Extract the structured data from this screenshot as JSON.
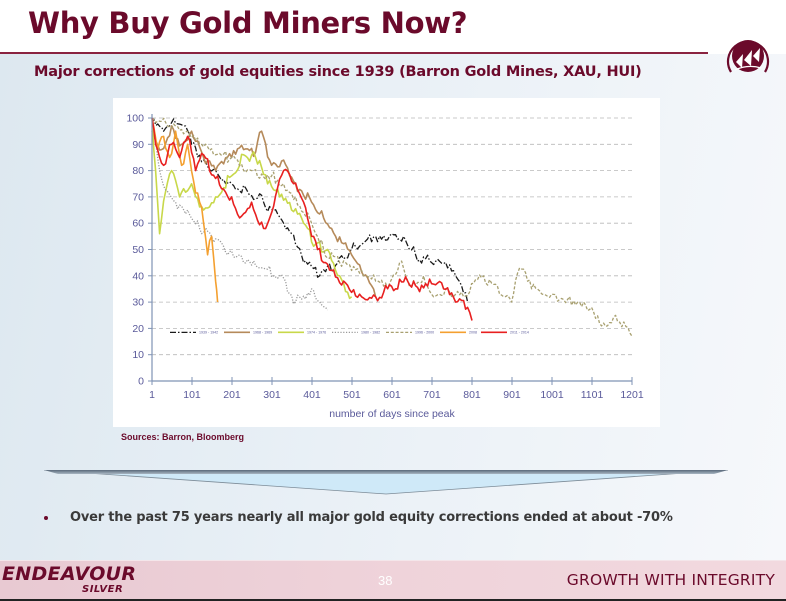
{
  "header": {
    "title": "Why Buy Gold Miners Now?",
    "subtitle": "Major corrections of gold equities since 1939 (Barron Gold Mines, XAU, HUI)"
  },
  "logo": {
    "icon": "endeavour-ship-emblem-icon",
    "color": "#6b0a2b"
  },
  "sources": "Sources: Barron, Bloomberg",
  "bullet": "Over the past 75 years nearly all major gold equity corrections ended at about -70%",
  "footer": {
    "brand_main": "ENDEAVOUR",
    "brand_sub": "SILVER",
    "page_number": "38",
    "tagline": "GROWTH WITH INTEGRITY"
  },
  "colors": {
    "brand": "#6b0a2b",
    "arrow_fill": "#cfe9f8",
    "arrow_edge": "#6d7f8d"
  },
  "chart_data": {
    "type": "line",
    "title": "",
    "xlabel": "number of days since peak",
    "ylabel": "",
    "xlim": [
      1,
      1201
    ],
    "ylim": [
      0,
      100
    ],
    "x_ticks": [
      1,
      101,
      201,
      301,
      401,
      501,
      601,
      701,
      801,
      901,
      1001,
      1101,
      1201
    ],
    "y_ticks": [
      0,
      10,
      20,
      30,
      40,
      50,
      60,
      70,
      80,
      90,
      100
    ],
    "grid": "horizontal-dashed",
    "legend_position": "inside-bottom-left",
    "series": [
      {
        "name": "1939 - 1942",
        "color": "#1a1a1a",
        "style": "dashdot",
        "x": [
          1,
          30,
          60,
          80,
          100,
          130,
          160,
          200,
          240,
          280,
          330,
          360,
          380,
          420,
          460,
          500,
          540,
          560,
          600,
          630,
          660,
          700,
          740,
          760,
          790
        ],
        "y": [
          98,
          95,
          98,
          97,
          90,
          84,
          80,
          75,
          72,
          68,
          60,
          52,
          45,
          40,
          44,
          50,
          54,
          55,
          56,
          55,
          48,
          45,
          43,
          40,
          30
        ]
      },
      {
        "name": "1968 - 1969",
        "color": "#b58a5a",
        "style": "solid",
        "x": [
          1,
          25,
          50,
          75,
          100,
          130,
          160,
          200,
          230,
          260,
          275,
          300,
          330,
          360,
          400,
          430,
          460,
          500,
          530,
          560
        ],
        "y": [
          95,
          88,
          97,
          90,
          95,
          85,
          80,
          85,
          88,
          87,
          95,
          82,
          84,
          75,
          68,
          62,
          55,
          48,
          40,
          32
        ]
      },
      {
        "name": "1974 - 1976",
        "color": "#c8d84a",
        "style": "solid",
        "x": [
          1,
          10,
          20,
          35,
          50,
          70,
          100,
          130,
          160,
          200,
          230,
          260,
          290,
          320,
          350,
          380,
          410,
          440,
          470,
          500
        ],
        "y": [
          100,
          80,
          56,
          72,
          80,
          70,
          75,
          65,
          70,
          78,
          86,
          85,
          75,
          70,
          65,
          60,
          52,
          50,
          40,
          32
        ]
      },
      {
        "name": "1980 - 1982",
        "color": "#9a9a9a",
        "style": "dotted",
        "x": [
          1,
          20,
          40,
          60,
          90,
          120,
          150,
          190,
          230,
          270,
          320,
          360,
          400,
          440
        ],
        "y": [
          100,
          80,
          72,
          68,
          65,
          58,
          55,
          48,
          45,
          43,
          40,
          30,
          35,
          27
        ]
      },
      {
        "name": "1996 - 2000",
        "color": "#a8a070",
        "style": "dashed",
        "x": [
          1,
          40,
          80,
          120,
          160,
          200,
          250,
          300,
          330,
          360,
          400,
          430,
          470,
          500,
          530,
          560,
          590,
          620,
          650,
          680,
          700,
          740,
          780,
          830,
          870,
          900,
          920,
          950,
          1000,
          1040,
          1080,
          1100,
          1130,
          1160,
          1201
        ],
        "y": [
          100,
          97,
          94,
          90,
          86,
          85,
          80,
          78,
          75,
          70,
          60,
          50,
          45,
          42,
          40,
          38,
          35,
          45,
          36,
          40,
          33,
          35,
          32,
          40,
          33,
          30,
          43,
          35,
          33,
          31,
          30,
          28,
          22,
          25,
          17
        ]
      },
      {
        "name": "2008",
        "color": "#f4a030",
        "style": "solid",
        "x": [
          1,
          15,
          30,
          45,
          60,
          75,
          90,
          105,
          120,
          130,
          140,
          150,
          160,
          165
        ],
        "y": [
          100,
          88,
          93,
          85,
          95,
          82,
          90,
          76,
          68,
          60,
          48,
          55,
          38,
          30
        ]
      },
      {
        "name": "2011 - 2014",
        "color": "#e82020",
        "style": "solid",
        "x": [
          1,
          15,
          30,
          50,
          70,
          90,
          110,
          130,
          160,
          200,
          220,
          250,
          280,
          300,
          330,
          350,
          380,
          400,
          430,
          450,
          480,
          520,
          560,
          600,
          640,
          670,
          700,
          730,
          760,
          790,
          801
        ],
        "y": [
          100,
          88,
          82,
          90,
          85,
          93,
          80,
          86,
          77,
          70,
          62,
          68,
          58,
          64,
          80,
          76,
          68,
          55,
          45,
          42,
          38,
          33,
          32,
          36,
          38,
          34,
          37,
          35,
          30,
          28,
          23
        ]
      }
    ]
  }
}
